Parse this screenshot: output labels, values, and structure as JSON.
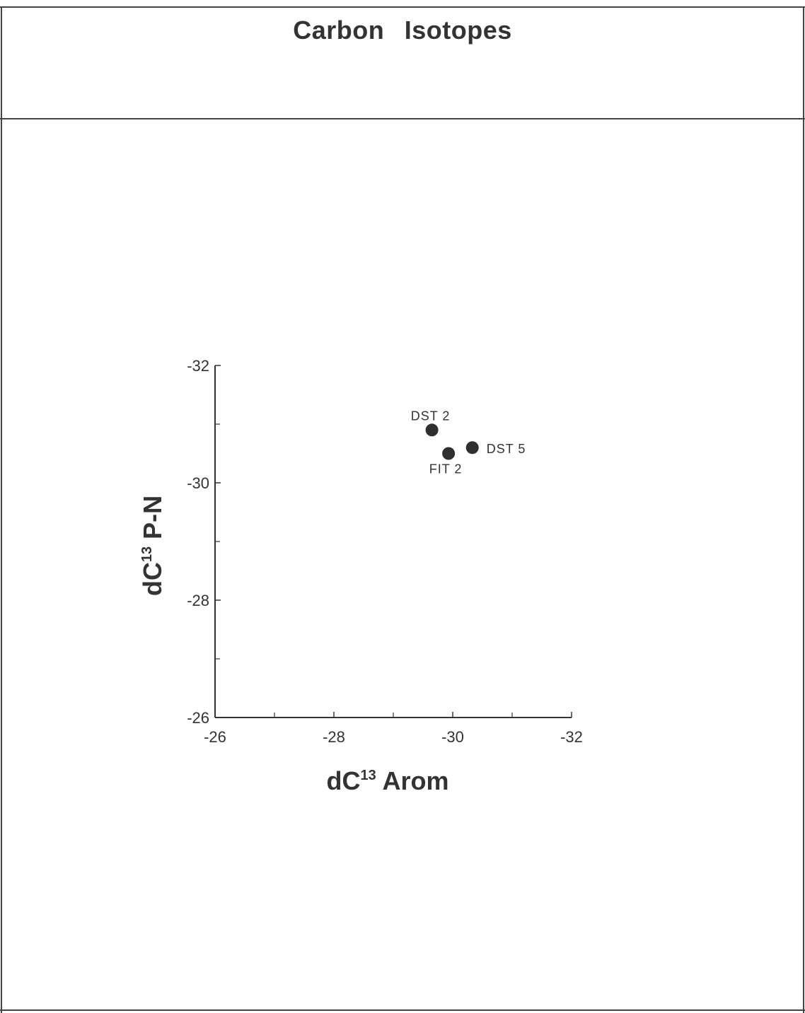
{
  "page": {
    "title": "Carbon Isotopes"
  },
  "chart_data": {
    "type": "scatter",
    "title": "Carbon Isotopes",
    "xlabel": {
      "base": "dC",
      "sup": "13",
      "rest": " Arom"
    },
    "ylabel": {
      "base": "dC",
      "sup": "13",
      "rest": " P-N"
    },
    "xlim": [
      -26,
      -32
    ],
    "ylim": [
      -26,
      -32
    ],
    "x_ticks": [
      -26,
      -28,
      -30,
      -32
    ],
    "x_tick_labels": [
      "-26",
      "-28",
      "-30",
      "-32"
    ],
    "x_minor_ticks": [
      -27,
      -29,
      -31
    ],
    "y_ticks": [
      -32,
      -30,
      -28,
      -26
    ],
    "y_tick_labels": [
      "-32",
      "-30",
      "-28",
      "-26"
    ],
    "y_minor_ticks": [
      -31,
      -29,
      -27
    ],
    "grid": false,
    "points": [
      {
        "label": "DST 2",
        "x": -29.65,
        "y": -30.9
      },
      {
        "label": "FIT 2",
        "x": -29.93,
        "y": -30.5
      },
      {
        "label": "DST 5",
        "x": -30.33,
        "y": -30.6
      }
    ],
    "colors": {
      "marker": "#2f2f2f",
      "axis": "#333333",
      "text": "#333333"
    }
  }
}
